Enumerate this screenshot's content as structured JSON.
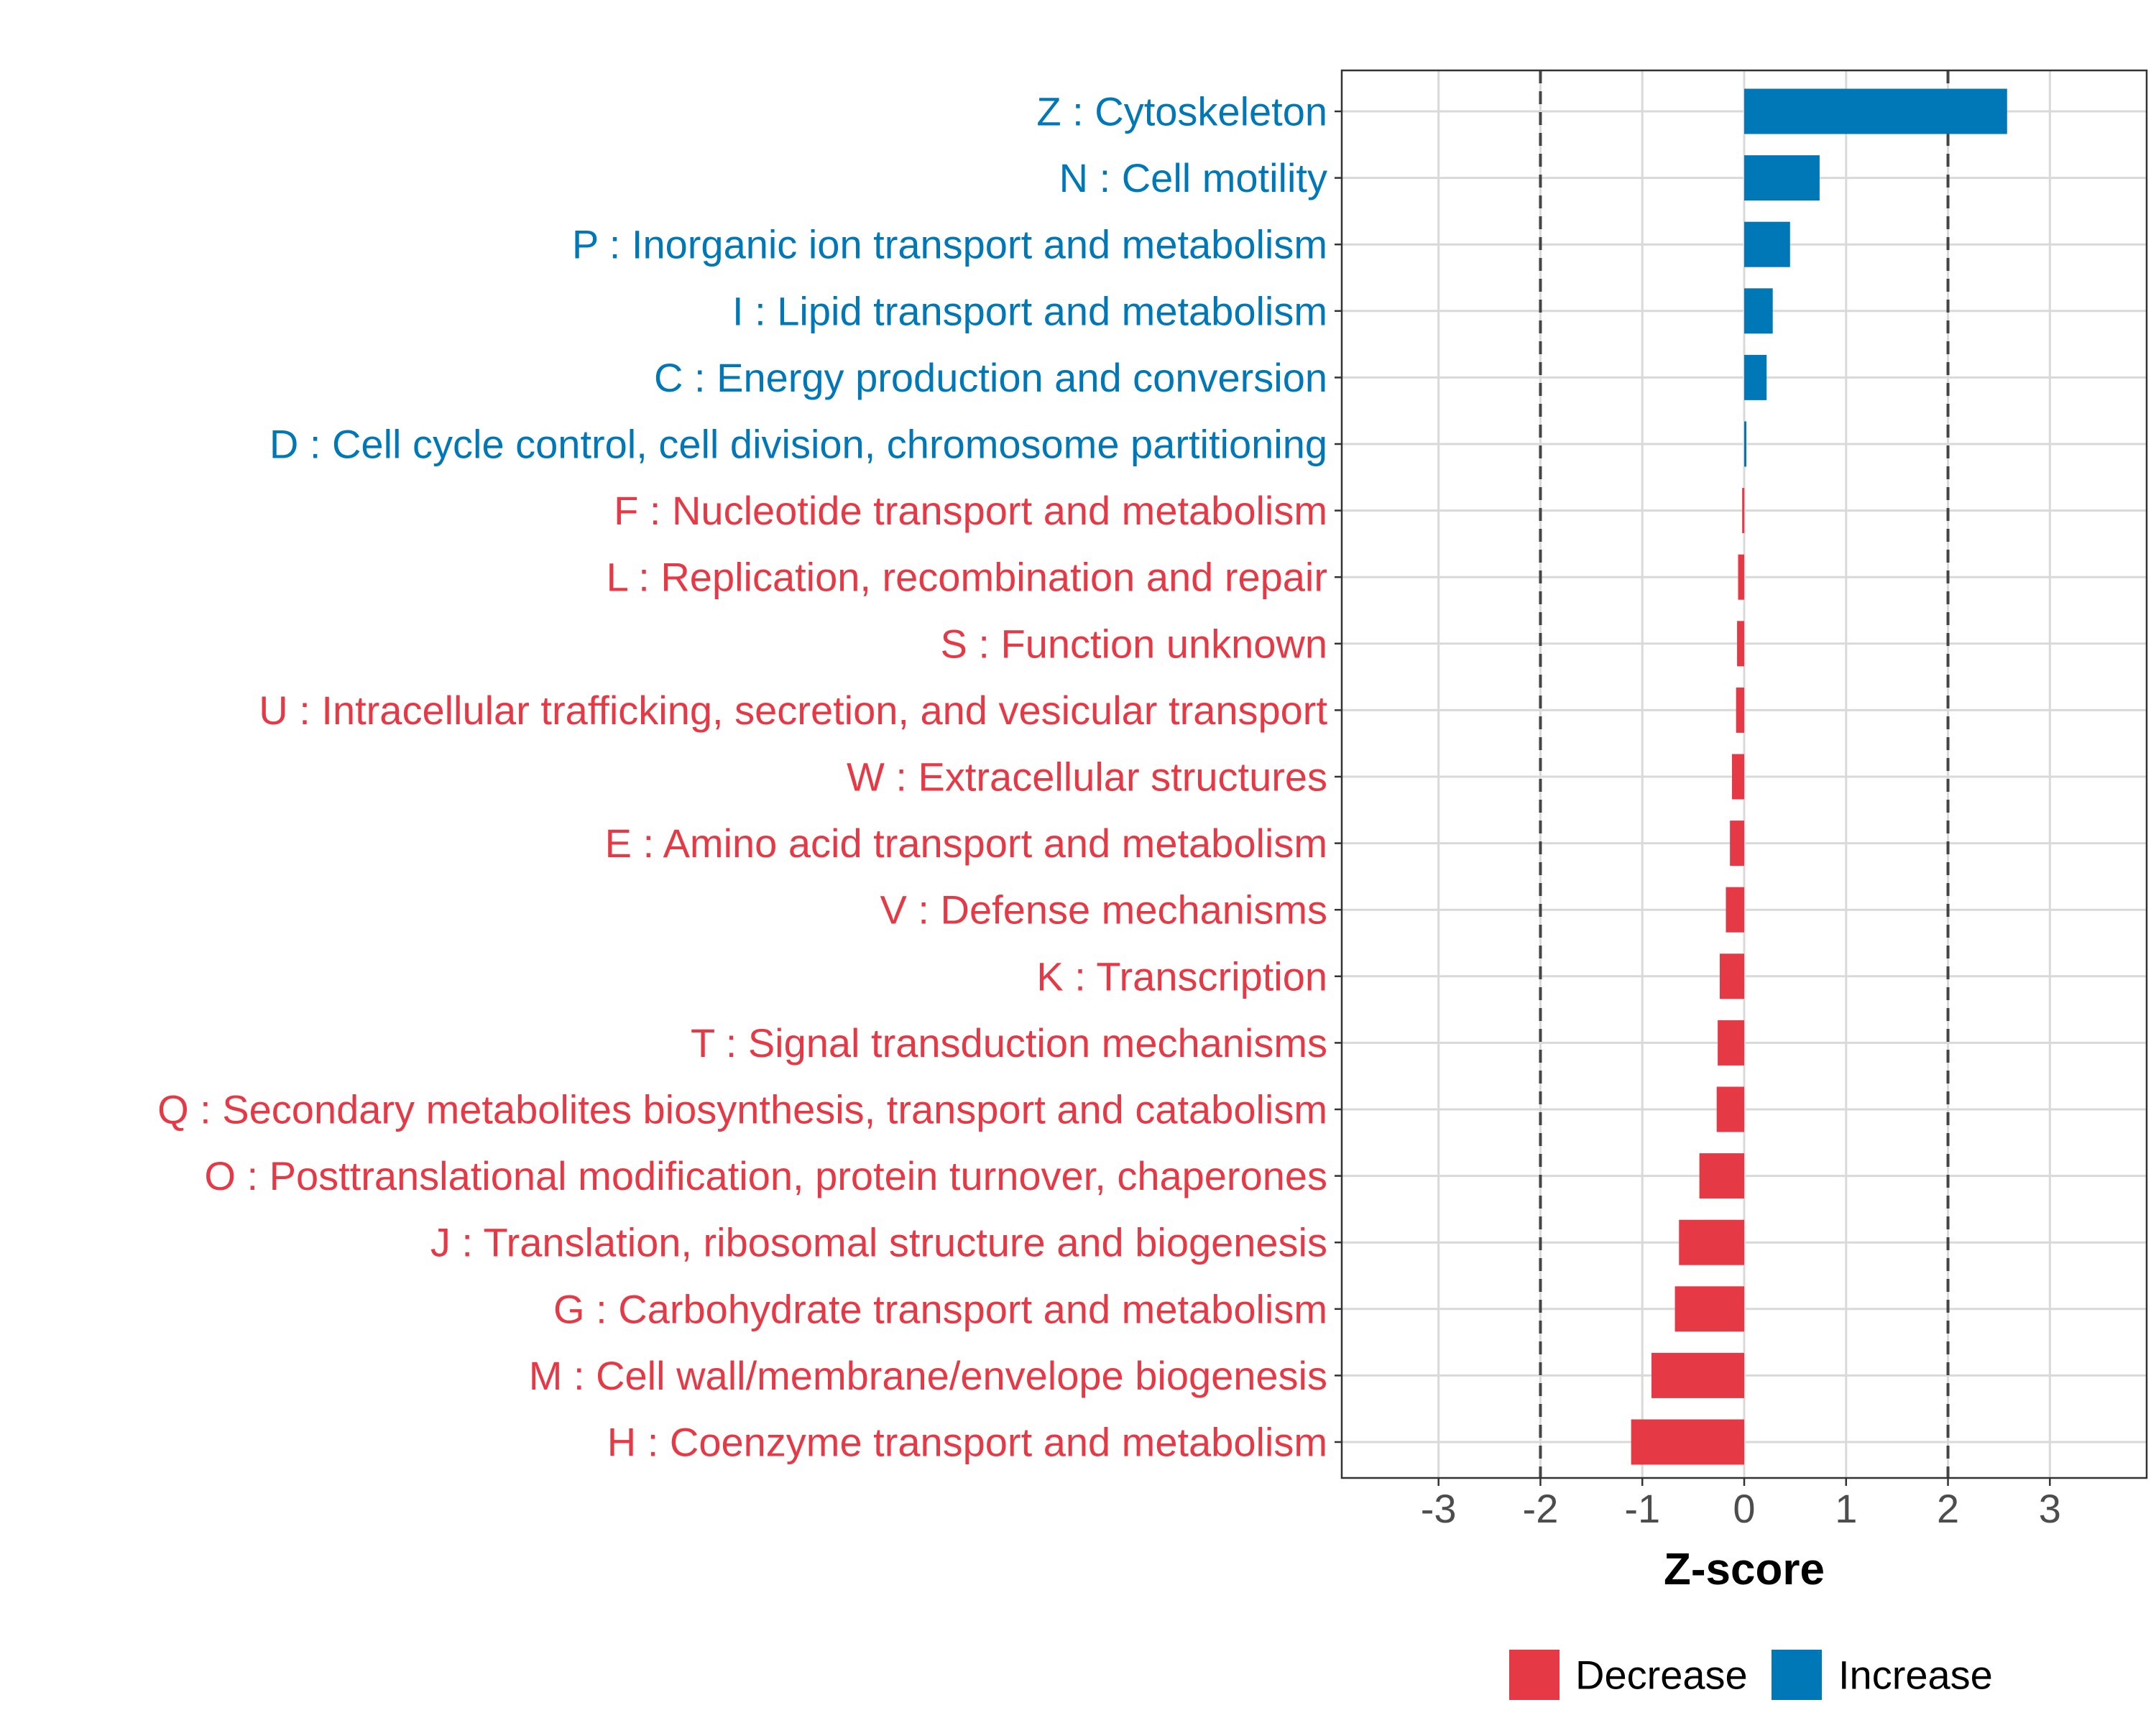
{
  "chart_data": {
    "type": "bar",
    "orientation": "horizontal",
    "title": "",
    "xlabel": "Z-score",
    "ylabel": "",
    "xlim": [
      -3.95,
      3.95
    ],
    "x_ticks": [
      -3,
      -2,
      -1,
      0,
      1,
      2,
      3
    ],
    "x_tick_labels": [
      "-3",
      "-2",
      "-1",
      "0",
      "1",
      "2",
      "3"
    ],
    "reference_lines": [
      -2,
      2
    ],
    "grid": true,
    "legend": {
      "position": "bottom",
      "entries": [
        {
          "label": "Decrease",
          "color": "#E63946"
        },
        {
          "label": "Increase",
          "color": "#0077B6"
        }
      ]
    },
    "bars": [
      {
        "label": "Z : Cytoskeleton",
        "value": 2.58,
        "group": "Increase"
      },
      {
        "label": "N : Cell motility",
        "value": 0.74,
        "group": "Increase"
      },
      {
        "label": "P : Inorganic ion transport and metabolism",
        "value": 0.45,
        "group": "Increase"
      },
      {
        "label": "I : Lipid transport and metabolism",
        "value": 0.28,
        "group": "Increase"
      },
      {
        "label": "C : Energy production and conversion",
        "value": 0.22,
        "group": "Increase"
      },
      {
        "label": "D : Cell cycle control, cell division, chromosome partitioning",
        "value": 0.02,
        "group": "Increase"
      },
      {
        "label": "F : Nucleotide transport and metabolism",
        "value": -0.02,
        "group": "Decrease"
      },
      {
        "label": "L : Replication, recombination and repair",
        "value": -0.06,
        "group": "Decrease"
      },
      {
        "label": "S : Function unknown",
        "value": -0.07,
        "group": "Decrease"
      },
      {
        "label": "U : Intracellular trafficking, secretion, and vesicular transport",
        "value": -0.08,
        "group": "Decrease"
      },
      {
        "label": "W : Extracellular structures",
        "value": -0.12,
        "group": "Decrease"
      },
      {
        "label": "E : Amino acid transport and metabolism",
        "value": -0.14,
        "group": "Decrease"
      },
      {
        "label": "V : Defense mechanisms",
        "value": -0.18,
        "group": "Decrease"
      },
      {
        "label": "K : Transcription",
        "value": -0.24,
        "group": "Decrease"
      },
      {
        "label": "T : Signal transduction mechanisms",
        "value": -0.26,
        "group": "Decrease"
      },
      {
        "label": "Q : Secondary metabolites biosynthesis, transport and catabolism",
        "value": -0.27,
        "group": "Decrease"
      },
      {
        "label": "O : Posttranslational modification, protein turnover, chaperones",
        "value": -0.44,
        "group": "Decrease"
      },
      {
        "label": "J : Translation, ribosomal structure and biogenesis",
        "value": -0.64,
        "group": "Decrease"
      },
      {
        "label": "G : Carbohydrate transport and metabolism",
        "value": -0.68,
        "group": "Decrease"
      },
      {
        "label": "M : Cell wall/membrane/envelope biogenesis",
        "value": -0.91,
        "group": "Decrease"
      },
      {
        "label": "H : Coenzyme transport and metabolism",
        "value": -1.11,
        "group": "Decrease"
      }
    ]
  }
}
